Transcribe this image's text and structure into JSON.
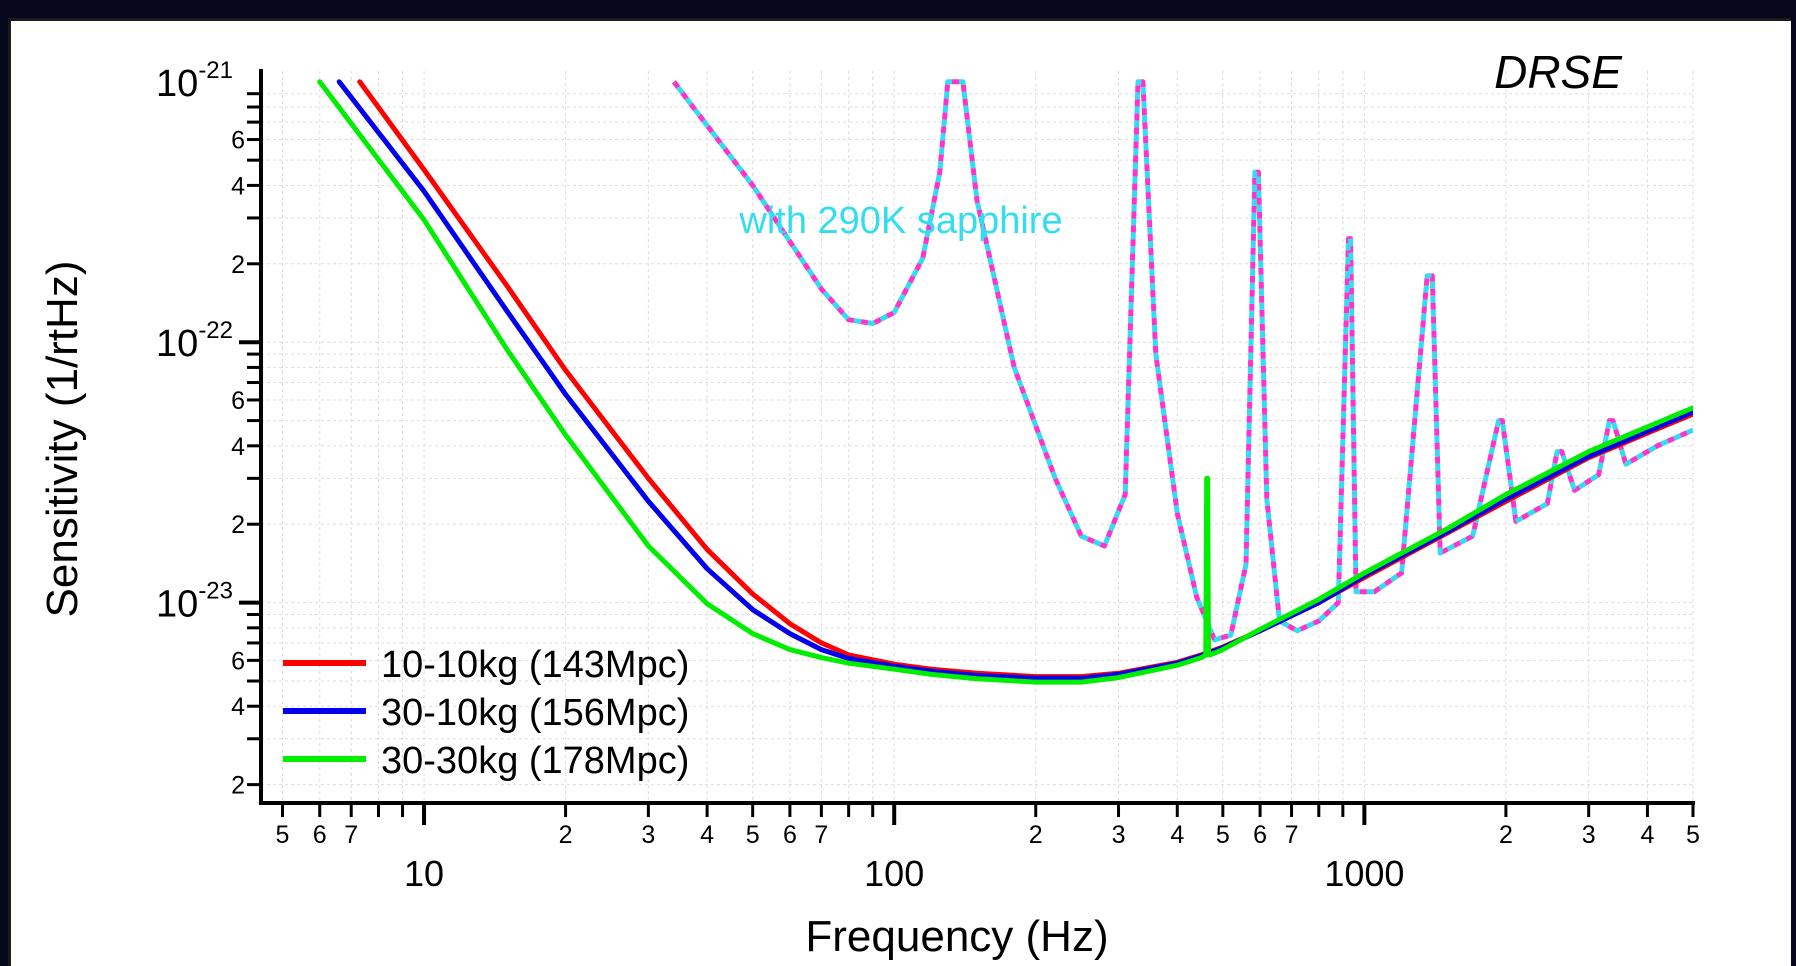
{
  "chart_data": {
    "type": "line",
    "title": "DRSE",
    "xlabel": "Frequency (Hz)",
    "ylabel": "Sensitivity (1/rtHz)",
    "xscale": "log",
    "yscale": "log",
    "xlim": [
      4.5,
      5000
    ],
    "ylim": [
      1.7e-24,
      1.1e-21
    ],
    "grid": true,
    "legend_position": "bottom-left",
    "annotation": "with 290K sapphire",
    "x_major_ticks": [
      {
        "value": 10,
        "label": "10"
      },
      {
        "value": 100,
        "label": "100"
      },
      {
        "value": 1000,
        "label": "1000"
      }
    ],
    "x_minor_tick_labels": [
      {
        "value": 5,
        "label": "5"
      },
      {
        "value": 6,
        "label": "6"
      },
      {
        "value": 7,
        "label": "7"
      },
      {
        "value": 20,
        "label": "2"
      },
      {
        "value": 30,
        "label": "3"
      },
      {
        "value": 40,
        "label": "4"
      },
      {
        "value": 50,
        "label": "5"
      },
      {
        "value": 60,
        "label": "6"
      },
      {
        "value": 70,
        "label": "7"
      },
      {
        "value": 200,
        "label": "2"
      },
      {
        "value": 300,
        "label": "3"
      },
      {
        "value": 400,
        "label": "4"
      },
      {
        "value": 500,
        "label": "5"
      },
      {
        "value": 600,
        "label": "6"
      },
      {
        "value": 700,
        "label": "7"
      },
      {
        "value": 2000,
        "label": "2"
      },
      {
        "value": 3000,
        "label": "3"
      },
      {
        "value": 4000,
        "label": "4"
      },
      {
        "value": 5000,
        "label": "5"
      }
    ],
    "y_major_ticks": [
      {
        "value": 1e-21,
        "mantissa": "10",
        "exponent": "-21"
      },
      {
        "value": 1e-22,
        "mantissa": "10",
        "exponent": "-22"
      },
      {
        "value": 1e-23,
        "mantissa": "10",
        "exponent": "-23"
      }
    ],
    "y_minor_tick_labels": [
      {
        "value": 6e-22,
        "label": "6"
      },
      {
        "value": 4e-22,
        "label": "4"
      },
      {
        "value": 2e-22,
        "label": "2"
      },
      {
        "value": 6e-23,
        "label": "6"
      },
      {
        "value": 4e-23,
        "label": "4"
      },
      {
        "value": 2e-23,
        "label": "2"
      },
      {
        "value": 6e-24,
        "label": "6"
      },
      {
        "value": 4e-24,
        "label": "4"
      },
      {
        "value": 2e-24,
        "label": "2"
      }
    ],
    "series": [
      {
        "name": "10-10kg (143Mpc)",
        "color": "#ff0000",
        "style": "solid",
        "x": [
          7.3,
          10,
          15,
          20,
          30,
          40,
          50,
          60,
          70,
          80,
          100,
          120,
          150,
          200,
          250,
          300,
          400,
          450,
          500,
          600,
          700,
          800,
          1000,
          1500,
          2000,
          3000,
          5000
        ],
        "y": [
          1e-21,
          4.6e-22,
          1.65e-22,
          7.8e-23,
          3e-23,
          1.6e-23,
          1.08e-23,
          8.3e-24,
          7e-24,
          6.3e-24,
          5.8e-24,
          5.55e-24,
          5.35e-24,
          5.2e-24,
          5.2e-24,
          5.35e-24,
          5.9e-24,
          6.3e-24,
          6.75e-24,
          7.8e-24,
          8.9e-24,
          1e-23,
          1.25e-23,
          1.85e-23,
          2.45e-23,
          3.6e-23,
          5.3e-23
        ]
      },
      {
        "name": "30-10kg (156Mpc)",
        "color": "#0000ee",
        "style": "solid",
        "x": [
          6.6,
          10,
          15,
          20,
          30,
          40,
          50,
          60,
          70,
          80,
          100,
          120,
          150,
          200,
          250,
          300,
          400,
          450,
          500,
          600,
          700,
          800,
          1000,
          1500,
          2000,
          3000,
          5000
        ],
        "y": [
          1e-21,
          3.8e-22,
          1.32e-22,
          6.3e-23,
          2.45e-23,
          1.35e-23,
          9.4e-24,
          7.6e-24,
          6.6e-24,
          6.1e-24,
          5.7e-24,
          5.45e-24,
          5.25e-24,
          5.12e-24,
          5.12e-24,
          5.3e-24,
          5.85e-24,
          6.25e-24,
          6.7e-24,
          7.8e-24,
          8.9e-24,
          1e-23,
          1.27e-23,
          1.87e-23,
          2.5e-23,
          3.65e-23,
          5.4e-23
        ]
      },
      {
        "name": "30-30kg (178Mpc)",
        "color": "#00ee00",
        "style": "solid",
        "x": [
          6,
          10,
          15,
          20,
          30,
          40,
          50,
          60,
          70,
          80,
          100,
          120,
          150,
          200,
          250,
          300,
          400,
          450,
          460,
          462,
          464,
          466,
          470,
          500,
          600,
          700,
          800,
          1000,
          1500,
          2000,
          3000,
          5000
        ],
        "y": [
          1e-21,
          2.95e-22,
          9.4e-23,
          4.4e-23,
          1.65e-23,
          9.9e-24,
          7.6e-24,
          6.6e-24,
          6.15e-24,
          5.85e-24,
          5.55e-24,
          5.3e-24,
          5.1e-24,
          4.95e-24,
          4.95e-24,
          5.15e-24,
          5.75e-24,
          6.15e-24,
          6.3e-24,
          3e-23,
          3e-23,
          6.3e-24,
          6.3e-24,
          6.6e-24,
          7.9e-24,
          9.1e-24,
          1.03e-23,
          1.3e-23,
          1.92e-23,
          2.6e-23,
          3.8e-23,
          5.6e-23
        ]
      },
      {
        "color": "#ff33cc",
        "style": "dashed",
        "x": [
          34,
          50,
          70,
          80,
          90,
          100,
          115,
          125,
          130,
          133,
          136,
          140,
          150,
          180,
          220,
          250,
          280,
          310,
          330,
          334,
          338,
          360,
          400,
          440,
          480,
          520,
          560,
          585,
          590,
          595,
          620,
          660,
          720,
          800,
          880,
          925,
          930,
          935,
          960,
          1050,
          1200,
          1360,
          1380,
          1395,
          1450,
          1700,
          1930,
          1950,
          1965,
          2100,
          2450,
          2570,
          2600,
          2630,
          2800,
          3150,
          3320,
          3350,
          3380,
          3600,
          4200,
          5000
        ],
        "y": [
          1e-21,
          4e-22,
          1.6e-22,
          1.22e-22,
          1.18e-22,
          1.3e-22,
          2.1e-22,
          4.5e-22,
          1e-21,
          1e-21,
          1e-21,
          1e-21,
          3.5e-22,
          8e-23,
          3e-23,
          1.8e-23,
          1.65e-23,
          2.6e-23,
          1e-21,
          1e-21,
          1e-21,
          9e-23,
          2.2e-23,
          1.05e-23,
          7.2e-24,
          7.5e-24,
          1.4e-23,
          4.5e-22,
          4.5e-22,
          4.5e-22,
          2.5e-23,
          8.5e-24,
          7.8e-24,
          8.5e-24,
          1e-23,
          2.5e-22,
          2.5e-22,
          2.5e-22,
          1.1e-23,
          1.1e-23,
          1.3e-23,
          1.8e-22,
          1.8e-22,
          1.8e-22,
          1.55e-23,
          1.8e-23,
          5e-23,
          5e-23,
          5e-23,
          2.05e-23,
          2.4e-23,
          3.8e-23,
          3.8e-23,
          3.8e-23,
          2.7e-23,
          3.1e-23,
          5e-23,
          5e-23,
          5e-23,
          3.4e-23,
          4e-23,
          4.6e-23
        ]
      },
      {
        "color": "#33ddee",
        "style": "dashed",
        "x": [
          34,
          50,
          70,
          80,
          90,
          100,
          115,
          125,
          130,
          133,
          136,
          140,
          150,
          180,
          220,
          250,
          280,
          310,
          330,
          334,
          338,
          360,
          400,
          440,
          480,
          520,
          560,
          585,
          590,
          595,
          620,
          660,
          720,
          800,
          880,
          925,
          930,
          935,
          960,
          1050,
          1200,
          1360,
          1380,
          1395,
          1450,
          1700,
          1930,
          1950,
          1965,
          2100,
          2450,
          2570,
          2600,
          2630,
          2800,
          3150,
          3320,
          3350,
          3380,
          3600,
          4200,
          5000
        ],
        "y": [
          1e-21,
          4e-22,
          1.6e-22,
          1.22e-22,
          1.18e-22,
          1.3e-22,
          2.1e-22,
          4.5e-22,
          1e-21,
          1e-21,
          1e-21,
          1e-21,
          3.5e-22,
          8e-23,
          3e-23,
          1.8e-23,
          1.65e-23,
          2.6e-23,
          1e-21,
          1e-21,
          1e-21,
          9e-23,
          2.2e-23,
          1.05e-23,
          7.2e-24,
          7.5e-24,
          1.4e-23,
          4.5e-22,
          4.5e-22,
          4.5e-22,
          2.5e-23,
          8.5e-24,
          7.8e-24,
          8.5e-24,
          1e-23,
          2.5e-22,
          2.5e-22,
          2.5e-22,
          1.1e-23,
          1.1e-23,
          1.3e-23,
          1.8e-22,
          1.8e-22,
          1.8e-22,
          1.55e-23,
          1.8e-23,
          5e-23,
          5e-23,
          5e-23,
          2.05e-23,
          2.4e-23,
          3.8e-23,
          3.8e-23,
          3.8e-23,
          2.7e-23,
          3.1e-23,
          5e-23,
          5e-23,
          5e-23,
          3.4e-23,
          4e-23,
          4.6e-23
        ]
      }
    ]
  }
}
